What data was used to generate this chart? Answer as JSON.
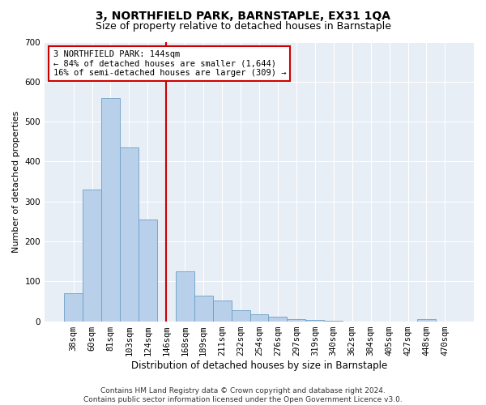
{
  "title": "3, NORTHFIELD PARK, BARNSTAPLE, EX31 1QA",
  "subtitle": "Size of property relative to detached houses in Barnstaple",
  "xlabel": "Distribution of detached houses by size in Barnstaple",
  "ylabel": "Number of detached properties",
  "categories": [
    "38sqm",
    "60sqm",
    "81sqm",
    "103sqm",
    "124sqm",
    "146sqm",
    "168sqm",
    "189sqm",
    "211sqm",
    "232sqm",
    "254sqm",
    "276sqm",
    "297sqm",
    "319sqm",
    "340sqm",
    "362sqm",
    "384sqm",
    "405sqm",
    "427sqm",
    "448sqm",
    "470sqm"
  ],
  "values": [
    70,
    330,
    560,
    435,
    255,
    0,
    125,
    65,
    52,
    28,
    17,
    12,
    5,
    3,
    1,
    0,
    0,
    0,
    0,
    5,
    0
  ],
  "bar_color": "#b8d0ea",
  "bar_edge_color": "#6b9fc8",
  "vline_index": 5,
  "vline_color": "#cc0000",
  "annotation_text": "3 NORTHFIELD PARK: 144sqm\n← 84% of detached houses are smaller (1,644)\n16% of semi-detached houses are larger (309) →",
  "annotation_box_color": "#ffffff",
  "annotation_box_edge": "#cc0000",
  "ylim": [
    0,
    700
  ],
  "yticks": [
    0,
    100,
    200,
    300,
    400,
    500,
    600,
    700
  ],
  "footer": "Contains HM Land Registry data © Crown copyright and database right 2024.\nContains public sector information licensed under the Open Government Licence v3.0.",
  "plot_bg_color": "#e8eef5",
  "grid_color": "#ffffff",
  "title_fontsize": 10,
  "subtitle_fontsize": 9,
  "xlabel_fontsize": 8.5,
  "ylabel_fontsize": 8,
  "tick_fontsize": 7.5,
  "annotation_fontsize": 7.5,
  "footer_fontsize": 6.5
}
